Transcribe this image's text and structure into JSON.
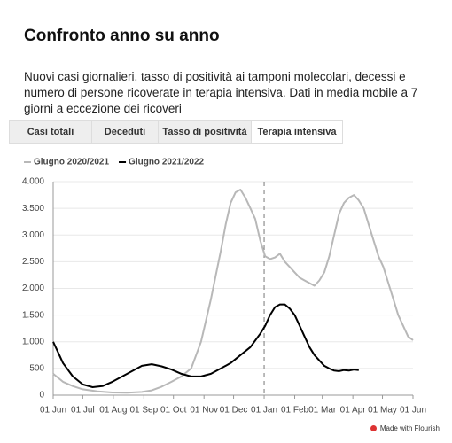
{
  "header": {
    "title": "Confronto anno su anno",
    "subtitle": "Nuovi casi giornalieri, tasso di positività ai tamponi molecolari, decessi e numero di persone ricoverate in terapia intensiva. Dati in media mobile a 7 giorni a eccezione dei ricoveri"
  },
  "tabs": [
    "Casi totali",
    "Deceduti",
    "Tasso di positività",
    "Terapia intensiva"
  ],
  "selected_tab": 3,
  "footer": "Made with Flourish",
  "chart_data": {
    "type": "line",
    "xlim": [
      0,
      365
    ],
    "xticks": [
      {
        "value": 0,
        "label": "01 Jun"
      },
      {
        "value": 30,
        "label": "01 Jul"
      },
      {
        "value": 61,
        "label": "01 Aug"
      },
      {
        "value": 92,
        "label": "01 Sep"
      },
      {
        "value": 122,
        "label": "01 Oct"
      },
      {
        "value": 153,
        "label": "01 Nov"
      },
      {
        "value": 183,
        "label": "01 Dec"
      },
      {
        "value": 214,
        "label": "01 Jan"
      },
      {
        "value": 245,
        "label": "01 Feb"
      },
      {
        "value": 273,
        "label": "01 Mar"
      },
      {
        "value": 304,
        "label": "01 Apr"
      },
      {
        "value": 334,
        "label": "01 May"
      },
      {
        "value": 365,
        "label": "01 Jun"
      }
    ],
    "ylim": [
      0,
      4000
    ],
    "yticks": [
      0,
      500,
      {
        "value": 1000,
        "label": "1.000"
      },
      {
        "value": 1500,
        "label": "1.500"
      },
      {
        "value": 2000,
        "label": "2.000"
      },
      {
        "value": 2500,
        "label": "2.500"
      },
      {
        "value": 3000,
        "label": "3.000"
      },
      {
        "value": 3500,
        "label": "3.500"
      },
      {
        "value": 4000,
        "label": "4.000"
      }
    ],
    "grid": true,
    "marker_x": 214,
    "series": [
      {
        "name": "Giugno 2020/2021",
        "color": "#b8b8b8",
        "x": [
          0,
          10,
          20,
          30,
          45,
          60,
          75,
          90,
          100,
          110,
          120,
          130,
          140,
          150,
          160,
          170,
          175,
          180,
          185,
          190,
          195,
          200,
          205,
          210,
          215,
          220,
          225,
          230,
          235,
          240,
          245,
          250,
          255,
          260,
          265,
          270,
          275,
          280,
          285,
          290,
          295,
          300,
          305,
          310,
          315,
          320,
          325,
          330,
          335,
          340,
          345,
          350,
          355,
          360,
          365
        ],
        "values": [
          400,
          250,
          170,
          110,
          70,
          50,
          45,
          60,
          90,
          160,
          250,
          350,
          500,
          1000,
          1800,
          2700,
          3200,
          3600,
          3800,
          3850,
          3700,
          3500,
          3300,
          2900,
          2600,
          2550,
          2580,
          2650,
          2500,
          2400,
          2300,
          2200,
          2150,
          2100,
          2050,
          2150,
          2300,
          2600,
          3000,
          3400,
          3600,
          3700,
          3750,
          3650,
          3500,
          3200,
          2900,
          2600,
          2400,
          2100,
          1800,
          1500,
          1300,
          1100,
          1030
        ]
      },
      {
        "name": "Giugno 2021/2022",
        "color": "#000000",
        "x": [
          0,
          5,
          10,
          20,
          30,
          40,
          50,
          60,
          70,
          80,
          90,
          100,
          110,
          120,
          130,
          140,
          150,
          160,
          170,
          180,
          190,
          200,
          210,
          215,
          220,
          225,
          230,
          235,
          240,
          245,
          250,
          255,
          260,
          265,
          270,
          275,
          280,
          285,
          290,
          295,
          300,
          305,
          310
        ],
        "values": [
          1000,
          800,
          600,
          350,
          200,
          150,
          170,
          250,
          350,
          450,
          550,
          580,
          540,
          480,
          400,
          350,
          350,
          400,
          500,
          600,
          750,
          900,
          1150,
          1300,
          1500,
          1650,
          1700,
          1700,
          1620,
          1500,
          1300,
          1100,
          900,
          750,
          650,
          550,
          500,
          460,
          450,
          470,
          460,
          480,
          470
        ]
      }
    ]
  }
}
